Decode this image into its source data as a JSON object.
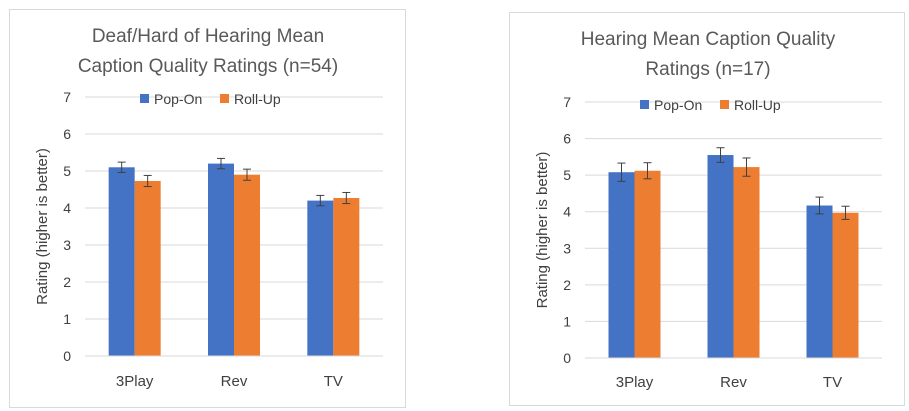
{
  "chart_data": [
    {
      "type": "bar",
      "title_lines": [
        "Deaf/Hard of Hearing Mean",
        "Caption Quality Ratings (n=54)"
      ],
      "xlabel": "",
      "ylabel": "Rating (higher is better)",
      "ylim": [
        0,
        7
      ],
      "yticks": [
        "0",
        "1",
        "2",
        "3",
        "4",
        "5",
        "6",
        "7"
      ],
      "categories": [
        "3Play",
        "Rev",
        "TV"
      ],
      "series": [
        {
          "name": "Pop-On",
          "color": "#4472c4",
          "values": [
            5.1,
            5.2,
            4.2
          ],
          "error": [
            0.14,
            0.14,
            0.14
          ]
        },
        {
          "name": "Roll-Up",
          "color": "#ed7d31",
          "values": [
            4.73,
            4.9,
            4.27
          ],
          "error": [
            0.15,
            0.15,
            0.15
          ]
        }
      ],
      "grid": true,
      "legend": "top"
    },
    {
      "type": "bar",
      "title_lines": [
        "Hearing Mean Caption Quality",
        "Ratings (n=17)"
      ],
      "xlabel": "",
      "ylabel": "Rating (higher is better)",
      "ylim": [
        0,
        7
      ],
      "yticks": [
        "0",
        "1",
        "2",
        "3",
        "4",
        "5",
        "6",
        "7"
      ],
      "categories": [
        "3Play",
        "Rev",
        "TV"
      ],
      "series": [
        {
          "name": "Pop-On",
          "color": "#4472c4",
          "values": [
            5.08,
            5.55,
            4.17
          ],
          "error": [
            0.25,
            0.2,
            0.23
          ]
        },
        {
          "name": "Roll-Up",
          "color": "#ed7d31",
          "values": [
            5.12,
            5.22,
            3.97
          ],
          "error": [
            0.22,
            0.25,
            0.18
          ]
        }
      ],
      "grid": true,
      "legend": "top"
    }
  ]
}
